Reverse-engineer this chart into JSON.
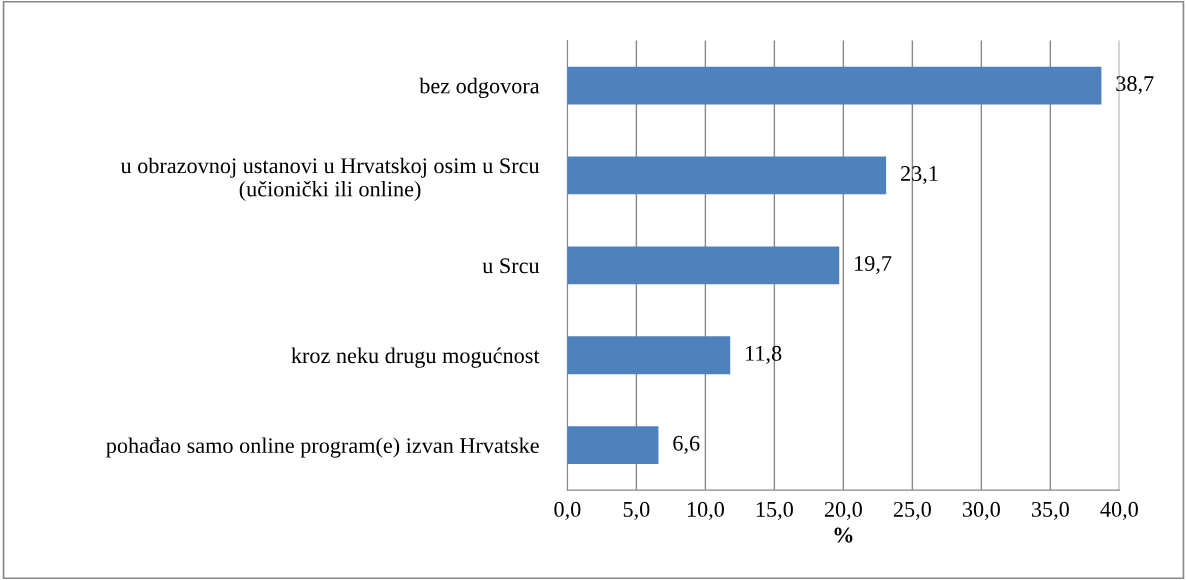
{
  "chart_data": {
    "type": "bar",
    "orientation": "horizontal",
    "xlabel": "%",
    "categories": [
      "bez odgovora",
      "u obrazovnoj ustanovi u Hrvatskoj osim u Srcu\n(učionički ili online)",
      "u Srcu",
      "kroz neku drugu mogućnost",
      "pohađao samo online program(e) izvan Hrvatske"
    ],
    "values": [
      38.7,
      23.1,
      19.7,
      11.8,
      6.6
    ],
    "value_labels": [
      "38,7",
      "23,1",
      "19,7",
      "11,8",
      "6,6"
    ],
    "color": "#4f81bd",
    "xlim": [
      0,
      40
    ],
    "xticks": [
      {
        "value": 0,
        "label": "0,0"
      },
      {
        "value": 5,
        "label": "5,0"
      },
      {
        "value": 10,
        "label": "10,0"
      },
      {
        "value": 15,
        "label": "15,0"
      },
      {
        "value": 20,
        "label": "20,0"
      },
      {
        "value": 25,
        "label": "25,0"
      },
      {
        "value": 30,
        "label": "30,0"
      },
      {
        "value": 35,
        "label": "35,0"
      },
      {
        "value": 40,
        "label": "40,0"
      }
    ],
    "grid": "x",
    "legend": false
  }
}
